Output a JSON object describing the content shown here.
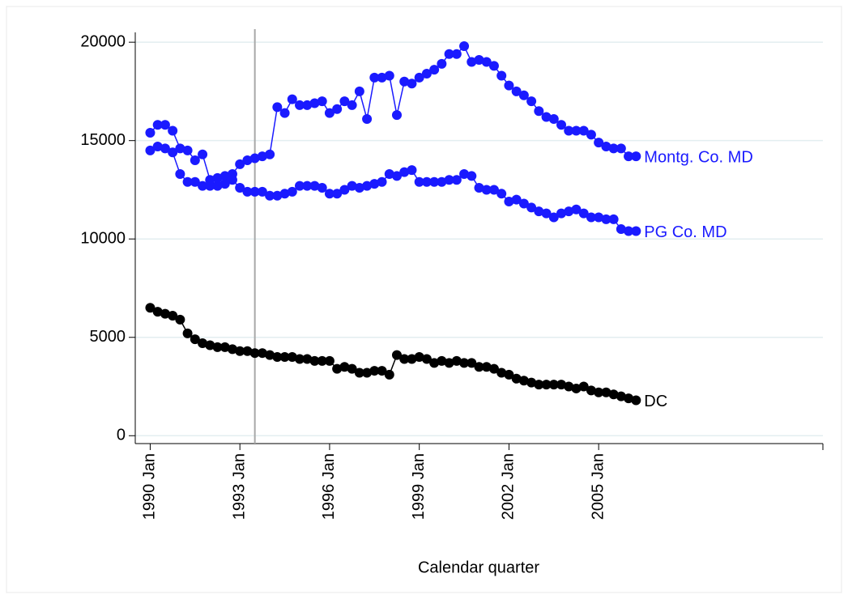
{
  "chart_data": {
    "type": "line",
    "x_label": "Calendar quarter",
    "x": [
      "1990-01",
      "1990-04",
      "1990-07",
      "1990-10",
      "1991-01",
      "1991-04",
      "1991-07",
      "1991-10",
      "1992-01",
      "1992-04",
      "1992-07",
      "1992-10",
      "1993-01",
      "1993-04",
      "1993-07",
      "1993-10",
      "1994-01",
      "1994-04",
      "1994-07",
      "1994-10",
      "1995-01",
      "1995-04",
      "1995-07",
      "1995-10",
      "1996-01",
      "1996-04",
      "1996-07",
      "1996-10",
      "1997-01",
      "1997-04",
      "1997-07",
      "1997-10",
      "1998-01",
      "1998-04",
      "1998-07",
      "1998-10",
      "1999-01",
      "1999-04",
      "1999-07",
      "1999-10",
      "2000-01",
      "2000-04",
      "2000-07",
      "2000-10",
      "2001-01",
      "2001-04",
      "2001-07",
      "2001-10",
      "2002-01",
      "2002-04",
      "2002-07",
      "2002-10",
      "2003-01",
      "2003-04",
      "2003-07",
      "2003-10",
      "2004-01",
      "2004-04",
      "2004-07",
      "2004-10",
      "2005-01",
      "2005-04",
      "2005-07",
      "2005-10",
      "2006-01",
      "2006-04"
    ],
    "xlim": [
      "1989-07",
      "2012-07"
    ],
    "xticks": [
      {
        "value": "1990-01",
        "label": "1990 Jan"
      },
      {
        "value": "1993-01",
        "label": "1993 Jan"
      },
      {
        "value": "1996-01",
        "label": "1996 Jan"
      },
      {
        "value": "1999-01",
        "label": "1999 Jan"
      },
      {
        "value": "2002-01",
        "label": "2002 Jan"
      },
      {
        "value": "2005-01",
        "label": "2005 Jan"
      }
    ],
    "vline": "1993-07",
    "vline_color": "#a8a8a8",
    "ylim": [
      -400,
      20500
    ],
    "yticks": [
      0,
      5000,
      10000,
      15000,
      20000
    ],
    "grid": true,
    "series": [
      {
        "name": "Montg. Co. MD",
        "color": "#1a1aff",
        "values": [
          15400,
          15800,
          15800,
          15500,
          14600,
          14500,
          14000,
          14300,
          13000,
          13100,
          13200,
          13300,
          13800,
          14000,
          14100,
          14200,
          14300,
          16700,
          16400,
          17100,
          16800,
          16800,
          16900,
          17000,
          16400,
          16600,
          17000,
          16800,
          17500,
          16100,
          18200,
          18200,
          18300,
          16300,
          18000,
          17900,
          18200,
          18400,
          18600,
          18900,
          19400,
          19400,
          19800,
          19000,
          19100,
          19000,
          18800,
          18300,
          17800,
          17500,
          17300,
          17000,
          16500,
          16200,
          16100,
          15800,
          15500,
          15500,
          15500,
          15300,
          14900,
          14700,
          14600,
          14600,
          14200,
          14200
        ]
      },
      {
        "name": "PG Co. MD",
        "color": "#1a1aff",
        "values": [
          14500,
          14700,
          14600,
          14400,
          13300,
          12900,
          12900,
          12700,
          12700,
          12700,
          12800,
          13000,
          12600,
          12400,
          12400,
          12400,
          12200,
          12200,
          12300,
          12400,
          12700,
          12700,
          12700,
          12600,
          12300,
          12300,
          12500,
          12700,
          12600,
          12700,
          12800,
          12900,
          13300,
          13200,
          13400,
          13500,
          12900,
          12900,
          12900,
          12900,
          13000,
          13000,
          13300,
          13200,
          12600,
          12500,
          12500,
          12300,
          11900,
          12000,
          11800,
          11600,
          11400,
          11300,
          11100,
          11300,
          11400,
          11500,
          11300,
          11100,
          11100,
          11000,
          11000,
          10500,
          10400,
          10400
        ]
      },
      {
        "name": "DC",
        "color": "#000000",
        "values": [
          6500,
          6300,
          6200,
          6100,
          5900,
          5200,
          4900,
          4700,
          4600,
          4500,
          4500,
          4400,
          4300,
          4300,
          4200,
          4200,
          4100,
          4000,
          4000,
          4000,
          3900,
          3900,
          3800,
          3800,
          3800,
          3400,
          3500,
          3400,
          3200,
          3200,
          3300,
          3300,
          3100,
          4100,
          3900,
          3900,
          4000,
          3900,
          3700,
          3800,
          3700,
          3800,
          3700,
          3700,
          3500,
          3500,
          3400,
          3200,
          3100,
          2900,
          2800,
          2700,
          2600,
          2600,
          2600,
          2600,
          2500,
          2400,
          2500,
          2300,
          2200,
          2200,
          2100,
          2000,
          1900,
          1800
        ]
      }
    ]
  }
}
